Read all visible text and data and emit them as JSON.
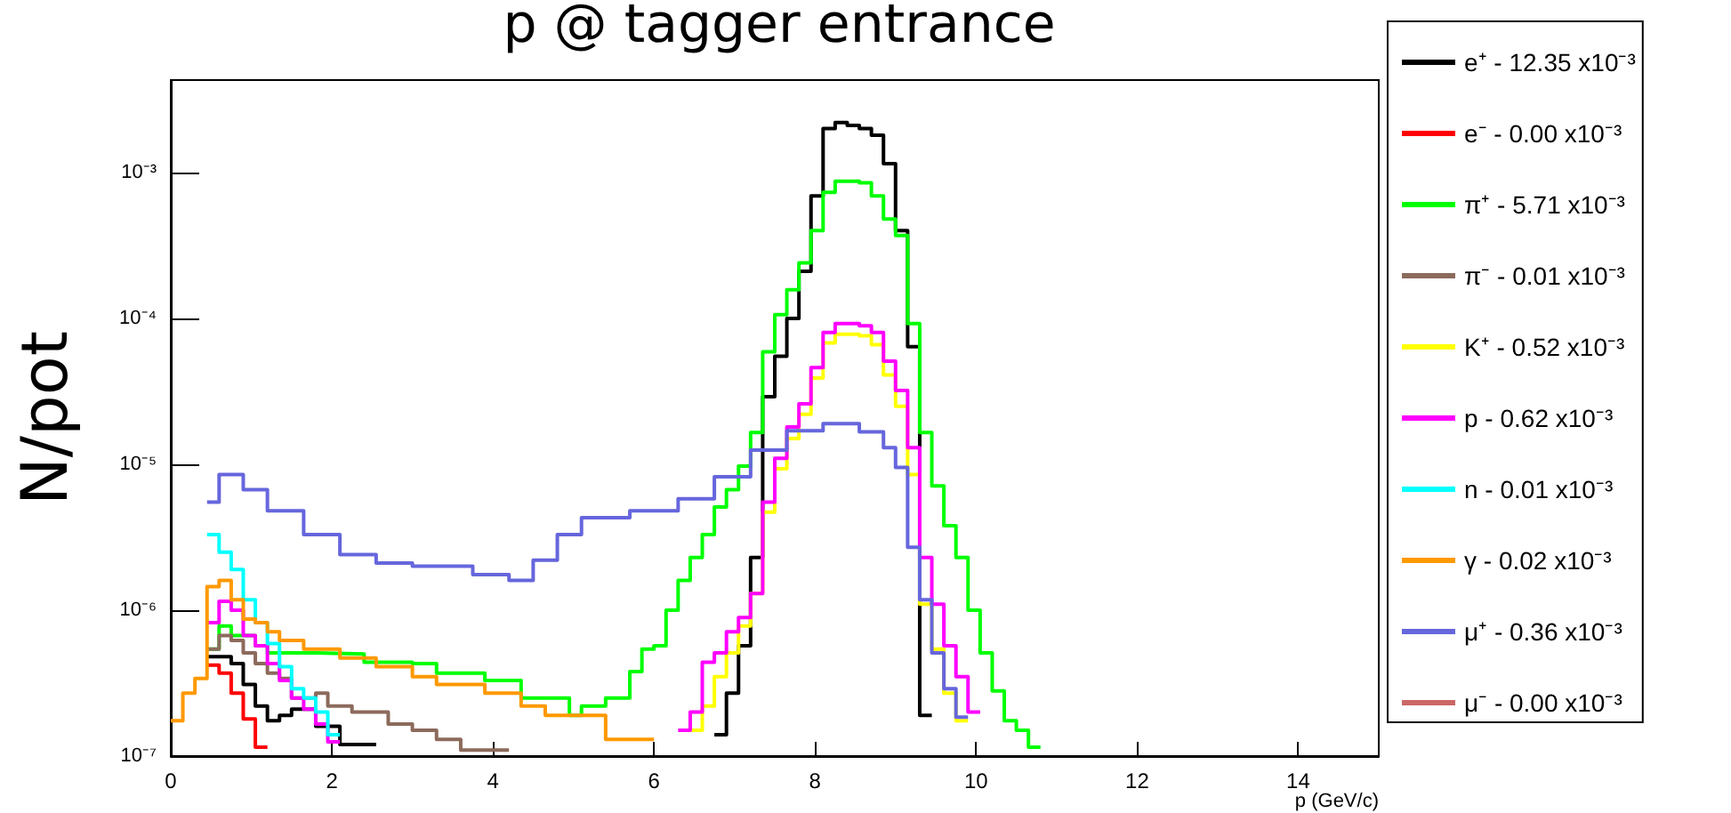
{
  "chart_data": {
    "type": "step",
    "title": "p @ tagger entrance",
    "xlabel": "p (GeV/c)",
    "ylabel": "N/pot",
    "xlim": [
      0,
      15
    ],
    "xticks": [
      0,
      2,
      4,
      6,
      8,
      10,
      12,
      14
    ],
    "ylim": [
      1e-07,
      0.0043
    ],
    "log": "y",
    "yticks": [
      {
        "value": 1e-07,
        "label": "10⁻⁷"
      },
      {
        "value": 1e-06,
        "label": "10⁻⁶"
      },
      {
        "value": 1e-05,
        "label": "10⁻⁵"
      },
      {
        "value": 0.0001,
        "label": "10⁻⁴"
      },
      {
        "value": 0.001,
        "label": "10⁻³"
      }
    ],
    "grid": false,
    "legend": "right",
    "series": [
      {
        "name": "e⁺ - 12.35 x10⁻³",
        "color": "#000000",
        "x": [
          0.45,
          0.75,
          0.9,
          1.05,
          1.2,
          1.35,
          1.5,
          1.8,
          2.1,
          2.55,
          6.75,
          6.9,
          7.05,
          7.2,
          7.35,
          7.5,
          7.65,
          7.8,
          7.95,
          8.1,
          8.25,
          8.4,
          8.55,
          8.7,
          8.85,
          9.0,
          9.15,
          9.3,
          9.45
        ],
        "values": [
          4.8e-07,
          4.3e-07,
          3.1e-07,
          2.2e-07,
          1.75e-07,
          1.9e-07,
          2.1e-07,
          1.6e-07,
          1.2e-07,
          null,
          1.4e-07,
          2.7e-07,
          5.7e-07,
          2.3e-06,
          2.9e-05,
          5.5e-05,
          0.0001,
          0.00021,
          0.00069,
          0.002,
          0.0022,
          0.0021,
          0.002,
          0.0018,
          0.00115,
          0.0004,
          6.4e-05,
          1.9e-07,
          1.9e-07
        ]
      },
      {
        "name": "e⁻ - 0.00 x10⁻³",
        "color": "#ff0000",
        "x": [
          0.45,
          0.6,
          0.75,
          0.9,
          1.05,
          1.2
        ],
        "values": [
          4.2e-07,
          3.7e-07,
          2.7e-07,
          1.8e-07,
          1.15e-07,
          1.15e-07
        ]
      },
      {
        "name": "π⁺ - 5.71 x10⁻³",
        "color": "#00ff00",
        "x": [
          0.45,
          0.6,
          0.75,
          1.05,
          1.2,
          1.8,
          2.4,
          3.0,
          3.3,
          3.9,
          4.35,
          4.95,
          5.1,
          5.4,
          5.7,
          5.85,
          6.0,
          6.15,
          6.3,
          6.45,
          6.6,
          6.75,
          6.9,
          7.05,
          7.2,
          7.35,
          7.5,
          7.65,
          7.8,
          7.95,
          8.1,
          8.25,
          8.4,
          8.55,
          8.7,
          8.85,
          9.0,
          9.15,
          9.3,
          9.45,
          9.6,
          9.75,
          9.9,
          10.05,
          10.2,
          10.35,
          10.5,
          10.65,
          10.8
        ],
        "values": [
          5.4e-07,
          7.8e-07,
          6.7e-07,
          5.7e-07,
          5.1e-07,
          5e-07,
          4.4e-07,
          4.3e-07,
          3.7e-07,
          3.3e-07,
          2.5e-07,
          1.9e-07,
          2.2e-07,
          2.5e-07,
          3.8e-07,
          5.4e-07,
          5.7e-07,
          1e-06,
          1.6e-06,
          2.3e-06,
          3.3e-06,
          5.1e-06,
          6.7e-06,
          9.7e-06,
          1.65e-05,
          5.9e-05,
          0.000106,
          0.000157,
          0.00024,
          0.0004,
          0.00073,
          0.00087,
          0.00087,
          0.00085,
          0.00069,
          0.00048,
          0.00037,
          9.2e-05,
          1.65e-05,
          7.1e-06,
          3.8e-06,
          2.3e-06,
          1e-06,
          5.1e-07,
          2.8e-07,
          1.75e-07,
          1.5e-07,
          1.15e-07,
          1.15e-07
        ]
      },
      {
        "name": "π⁻ - 0.01 x10⁻³",
        "color": "#8c6a5c",
        "x": [
          0.45,
          0.6,
          0.75,
          0.9,
          1.05,
          1.2,
          1.35,
          1.5,
          1.8,
          1.95,
          2.25,
          2.7,
          3.0,
          3.3,
          3.6,
          4.2
        ],
        "values": [
          5.4e-07,
          6.7e-07,
          6.2e-07,
          5.1e-07,
          4.3e-07,
          3.7e-07,
          3.4e-07,
          2.5e-07,
          2.7e-07,
          2.2e-07,
          2e-07,
          1.66e-07,
          1.5e-07,
          1.3e-07,
          1.1e-07,
          1.1e-07
        ]
      },
      {
        "name": "K⁺ - 0.52 x10⁻³",
        "color": "#ffff00",
        "x": [
          6.45,
          6.6,
          6.75,
          6.9,
          7.05,
          7.2,
          7.35,
          7.5,
          7.65,
          7.8,
          7.95,
          8.1,
          8.25,
          8.55,
          8.7,
          8.85,
          9.0,
          9.15,
          9.3,
          9.45,
          9.6,
          9.75,
          9.9
        ],
        "values": [
          1.5e-07,
          2.2e-07,
          3.5e-07,
          5.1e-07,
          7.8e-07,
          1.3e-06,
          4.7e-06,
          9.3e-06,
          1.5e-05,
          2.2e-05,
          3.9e-05,
          6.8e-05,
          7.8e-05,
          7.6e-05,
          6.6e-05,
          4.1e-05,
          2.5e-05,
          8.5e-06,
          1.1e-06,
          5.4e-07,
          2.7e-07,
          1.75e-07,
          1.75e-07
        ]
      },
      {
        "name": "p - 0.62 x10⁻³",
        "color": "#ff00ff",
        "x": [
          0.45,
          0.6,
          0.75,
          0.9,
          1.05,
          1.2,
          1.35,
          1.5,
          1.65,
          1.8,
          1.95,
          2.1,
          6.3,
          6.45,
          6.6,
          6.75,
          6.9,
          7.05,
          7.2,
          7.35,
          7.5,
          7.65,
          7.8,
          7.95,
          8.1,
          8.25,
          8.55,
          8.7,
          8.85,
          9.0,
          9.15,
          9.3,
          9.45,
          9.6,
          9.75,
          9.9,
          10.05
        ],
        "values": [
          8.2e-07,
          1.15e-06,
          1e-06,
          6.7e-07,
          5.7e-07,
          4.3e-07,
          3.3e-07,
          2.5e-07,
          2.1e-07,
          1.66e-07,
          1.25e-07,
          null,
          1.5e-07,
          2e-07,
          4.4e-07,
          5.1e-07,
          7.1e-07,
          8.9e-07,
          1.3e-06,
          5.5e-06,
          1.1e-05,
          1.8e-05,
          2.6e-05,
          4.6e-05,
          8e-05,
          9.2e-05,
          8.9e-05,
          8e-05,
          5.1e-05,
          3.2e-05,
          1.3e-05,
          2.3e-06,
          1.1e-06,
          5.7e-07,
          3.5e-07,
          2e-07,
          2e-07
        ]
      },
      {
        "name": "n - 0.01 x10⁻³",
        "color": "#00ffff",
        "x": [
          0.45,
          0.6,
          0.75,
          0.9,
          1.05,
          1.2,
          1.35,
          1.5,
          1.65,
          1.8,
          1.95,
          2.1
        ],
        "values": [
          3.3e-06,
          2.5e-06,
          1.9e-06,
          1.18e-06,
          8.2e-07,
          5.9e-07,
          4.1e-07,
          2.9e-07,
          2.5e-07,
          2e-07,
          1.4e-07,
          1.4e-07
        ]
      },
      {
        "name": "γ - 0.02 x10⁻³",
        "color": "#ff9900",
        "x": [
          0,
          0.15,
          0.3,
          0.45,
          0.6,
          0.75,
          0.9,
          1.05,
          1.2,
          1.35,
          1.65,
          2.1,
          2.55,
          3.0,
          3.3,
          3.9,
          4.35,
          4.65,
          5.4,
          6.0
        ],
        "values": [
          1.75e-07,
          2.7e-07,
          3.4e-07,
          1.45e-06,
          1.6e-06,
          1.18e-06,
          8.7e-07,
          8.2e-07,
          7.1e-07,
          6.2e-07,
          5.4e-07,
          4.7e-07,
          4.1e-07,
          3.5e-07,
          3.1e-07,
          2.7e-07,
          2.2e-07,
          1.9e-07,
          1.3e-07,
          1.3e-07
        ]
      },
      {
        "name": "μ⁺ - 0.36 x10⁻³",
        "color": "#6666dd",
        "x": [
          0.45,
          0.6,
          0.9,
          1.2,
          1.65,
          2.1,
          2.55,
          3.0,
          3.75,
          4.2,
          4.5,
          4.8,
          5.1,
          5.7,
          6.3,
          6.75,
          7.2,
          7.65,
          8.1,
          8.55,
          8.85,
          9.0,
          9.15,
          9.3,
          9.45,
          9.6,
          9.75,
          9.9
        ],
        "values": [
          5.5e-06,
          8.5e-06,
          6.7e-06,
          4.8e-06,
          3.3e-06,
          2.4e-06,
          2.1e-06,
          2e-06,
          1.75e-06,
          1.6e-06,
          2.2e-06,
          3.3e-06,
          4.3e-06,
          4.8e-06,
          5.8e-06,
          8.2e-06,
          1.25e-05,
          1.7e-05,
          1.9e-05,
          1.67e-05,
          1.3e-05,
          9.5e-06,
          2.7e-06,
          1.18e-06,
          5.1e-07,
          2.9e-07,
          1.85e-07,
          1.85e-07
        ]
      },
      {
        "name": "μ⁻ - 0.00 x10⁻³",
        "color": "#cc6666"
      }
    ]
  }
}
